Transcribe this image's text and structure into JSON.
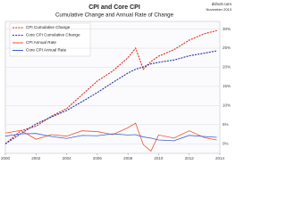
{
  "chart_data": {
    "type": "line",
    "title": "CPI and Core CPI",
    "subtitle": "Cumulative Change and Annual Rate of Change",
    "source": "dshort.com",
    "date": "November 2013",
    "x": [
      2000,
      2001,
      2002,
      2003,
      2004,
      2005,
      2006,
      2007,
      2008,
      2008.5,
      2009,
      2009.5,
      2010,
      2011,
      2012,
      2013,
      2013.8
    ],
    "series": [
      {
        "name": "CPI Cumulative Change",
        "color": "#e2231a",
        "dashed": true,
        "values": [
          0,
          3.4,
          4.6,
          7.2,
          9.2,
          12.8,
          16.4,
          19.0,
          22.5,
          25.0,
          19.5,
          21.5,
          22.9,
          24.6,
          27.1,
          28.8,
          29.6
        ]
      },
      {
        "name": "Core CPI Cumulative Change",
        "color": "#1f2fa8",
        "dashed": true,
        "values": [
          0,
          2.6,
          5.2,
          7.0,
          8.7,
          11.0,
          13.4,
          16.0,
          18.5,
          19.5,
          20.1,
          20.9,
          21.3,
          21.9,
          23.0,
          23.7,
          24.3
        ]
      },
      {
        "name": "CPI Annual Rate",
        "color": "#e8552f",
        "dashed": false,
        "values": [
          2.8,
          3.5,
          1.2,
          2.4,
          2.0,
          3.4,
          3.2,
          2.4,
          4.2,
          5.4,
          -0.2,
          -1.9,
          2.3,
          1.5,
          3.4,
          1.6,
          1.0
        ]
      },
      {
        "name": "Core CPI Annual Rate",
        "color": "#3d5fd8",
        "dashed": false,
        "values": [
          2.0,
          2.6,
          2.7,
          1.9,
          1.4,
          2.2,
          2.1,
          2.6,
          2.3,
          2.4,
          1.8,
          1.5,
          1.0,
          0.8,
          2.2,
          1.9,
          1.7
        ]
      }
    ],
    "xlim": [
      2000,
      2014
    ],
    "xticks": [
      2000,
      2002,
      2004,
      2006,
      2008,
      2010,
      2012,
      2014
    ],
    "ylim": [
      -2.5,
      32
    ],
    "yticks": [
      {
        "value": 0,
        "label": "0%"
      },
      {
        "value": 5,
        "label": "5%"
      },
      {
        "value": 10,
        "label": "10%"
      },
      {
        "value": 15,
        "label": "15%"
      },
      {
        "value": 20,
        "label": "20%"
      },
      {
        "value": 25,
        "label": "25%"
      },
      {
        "value": 30,
        "label": "30%"
      }
    ],
    "grid": true
  }
}
